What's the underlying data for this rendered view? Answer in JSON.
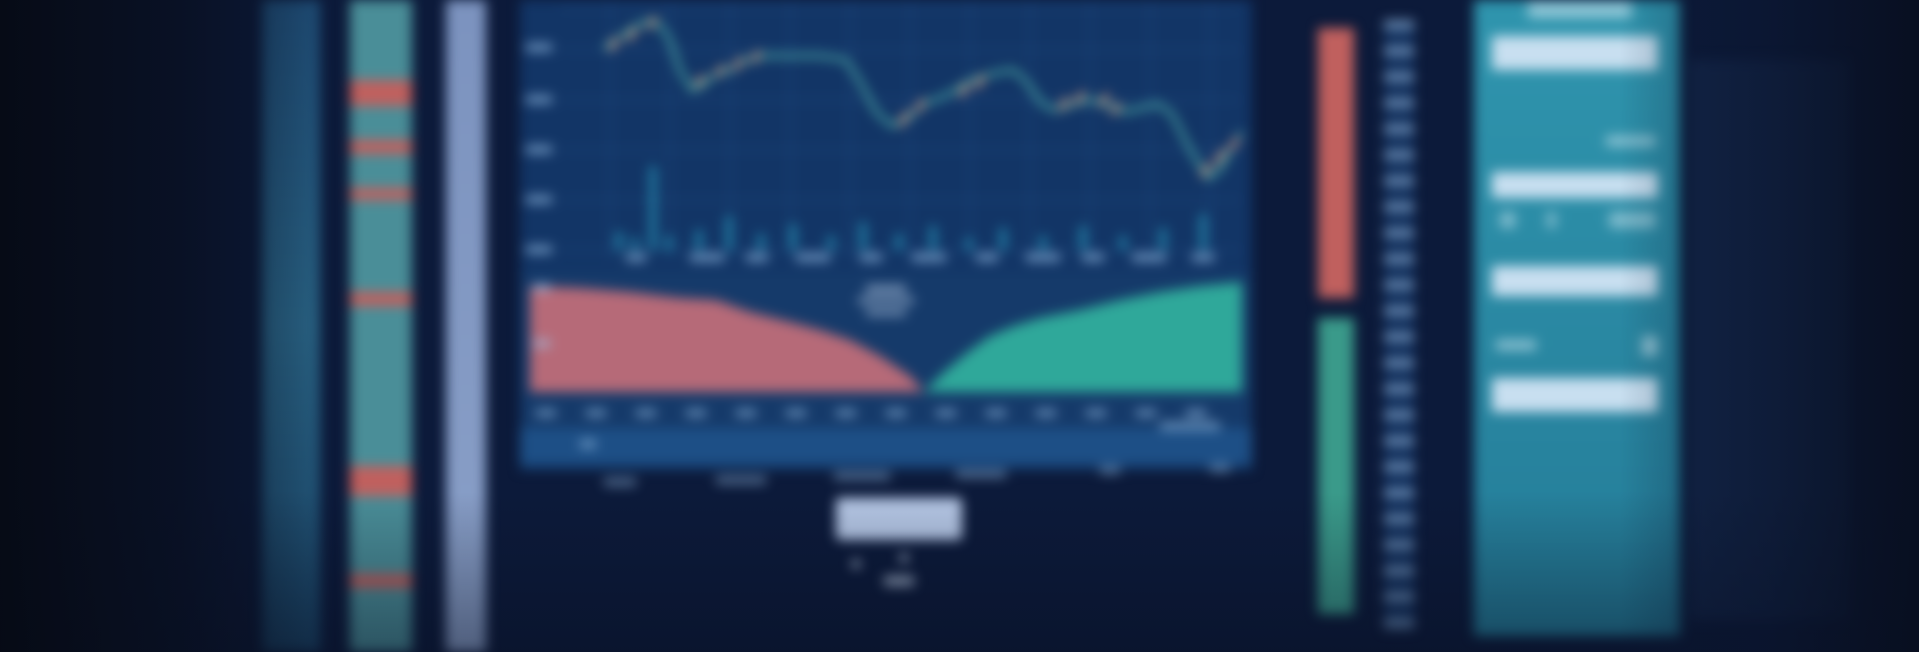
{
  "theme": {
    "background": "#0c1a3a",
    "panel": "#153a6a",
    "grid": "#2c5a92",
    "price_line": "#5fd0b8",
    "candle_up": "#f0a080",
    "loss_area": "#b66a78",
    "gain_area": "#2fa89a",
    "ladder_red": "#c0605e",
    "ladder_green": "#3a9a8a",
    "side_panel": "#2a8aa6"
  },
  "left_strips": {
    "accent_marks": 7
  },
  "order_button": {
    "label": ""
  },
  "icons": [
    "chart-icon"
  ]
}
